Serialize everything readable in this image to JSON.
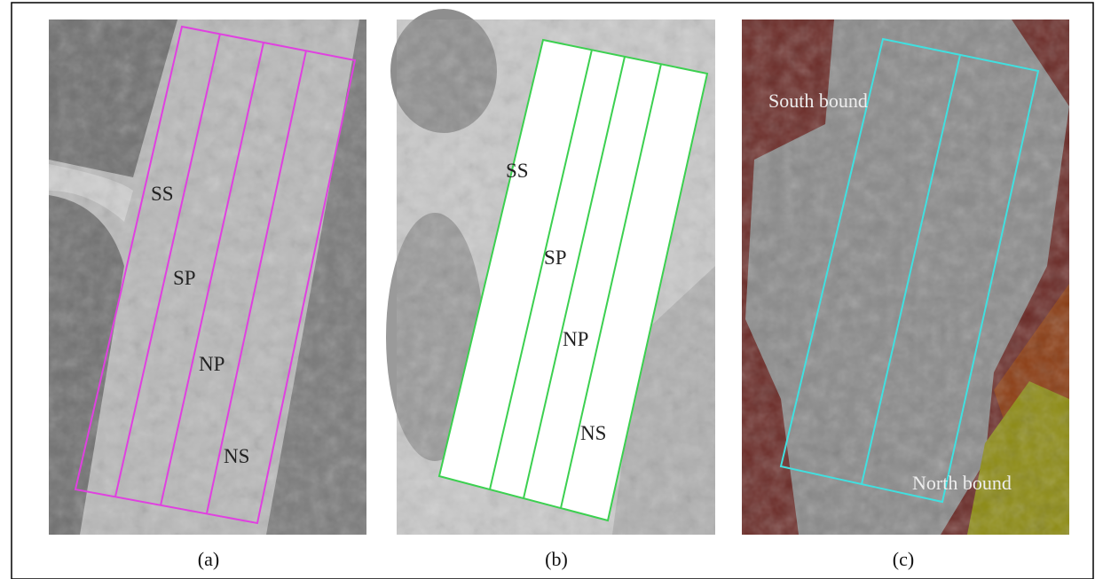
{
  "panels": [
    {
      "caption": "(a)",
      "labels": [
        "SS",
        "SP",
        "NP",
        "NS"
      ]
    },
    {
      "caption": "(b)",
      "labels": [
        "SS",
        "SP",
        "NP",
        "NS"
      ]
    },
    {
      "caption": "(c)",
      "labels": [
        "South bound",
        "North bound"
      ]
    }
  ]
}
